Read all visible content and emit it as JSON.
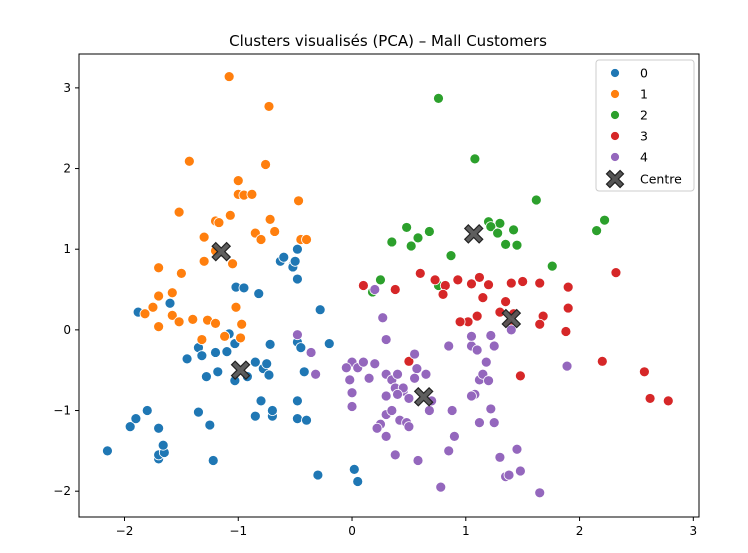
{
  "chart_data": {
    "type": "scatter",
    "title": "Clusters visualisés (PCA) – Mall Customers",
    "xlabel": "",
    "ylabel": "",
    "xlim": [
      -2.4,
      3.05
    ],
    "ylim": [
      -2.32,
      3.42
    ],
    "xticks": [
      -2,
      -1,
      0,
      1,
      2,
      3
    ],
    "yticks": [
      -2,
      -1,
      0,
      1,
      2,
      3
    ],
    "xtick_labels": [
      "−2",
      "−1",
      "0",
      "1",
      "2",
      "3"
    ],
    "ytick_labels": [
      "−2",
      "−1",
      "0",
      "1",
      "2",
      "3"
    ],
    "grid": false,
    "legend_position": "top-right",
    "series": [
      {
        "name": "0",
        "color": "#1f77b4",
        "points": [
          [
            -2.15,
            -1.5
          ],
          [
            -1.95,
            -1.2
          ],
          [
            -1.9,
            -1.1
          ],
          [
            -1.8,
            -1.0
          ],
          [
            -1.88,
            0.22
          ],
          [
            -1.7,
            -1.6
          ],
          [
            -1.7,
            -1.55
          ],
          [
            -1.65,
            -1.52
          ],
          [
            -1.66,
            -1.43
          ],
          [
            -1.7,
            -1.22
          ],
          [
            -1.6,
            0.33
          ],
          [
            -1.45,
            -0.36
          ],
          [
            -1.35,
            -1.02
          ],
          [
            -1.35,
            -0.22
          ],
          [
            -1.32,
            -0.32
          ],
          [
            -1.28,
            -0.58
          ],
          [
            -1.25,
            -1.18
          ],
          [
            -1.22,
            -1.62
          ],
          [
            -1.18,
            -0.52
          ],
          [
            -1.2,
            -0.28
          ],
          [
            -1.1,
            -0.27
          ],
          [
            -1.08,
            -0.05
          ],
          [
            -1.03,
            -0.63
          ],
          [
            -1.03,
            -0.17
          ],
          [
            -1.02,
            0.53
          ],
          [
            -0.95,
            0.52
          ],
          [
            -0.92,
            -0.58
          ],
          [
            -0.85,
            -0.4
          ],
          [
            -0.85,
            -1.07
          ],
          [
            -0.82,
            0.45
          ],
          [
            -0.8,
            -0.88
          ],
          [
            -0.78,
            -0.48
          ],
          [
            -0.75,
            -0.42
          ],
          [
            -0.73,
            -0.56
          ],
          [
            -0.72,
            -0.18
          ],
          [
            -0.7,
            -1.07
          ],
          [
            -0.7,
            -1.0
          ],
          [
            -0.63,
            0.85
          ],
          [
            -0.6,
            0.9
          ],
          [
            -0.52,
            0.8
          ],
          [
            -0.52,
            0.78
          ],
          [
            -0.5,
            0.85
          ],
          [
            -0.48,
            1.0
          ],
          [
            -0.48,
            0.63
          ],
          [
            -0.48,
            -0.15
          ],
          [
            -0.48,
            -0.88
          ],
          [
            -0.48,
            -1.1
          ],
          [
            -0.45,
            -0.22
          ],
          [
            -0.42,
            -0.52
          ],
          [
            -0.4,
            -1.12
          ],
          [
            -0.3,
            -1.8
          ],
          [
            -0.28,
            0.25
          ],
          [
            -0.2,
            -0.17
          ],
          [
            0.02,
            -1.73
          ],
          [
            0.05,
            -1.88
          ]
        ]
      },
      {
        "name": "1",
        "color": "#ff7f0e",
        "points": [
          [
            -1.08,
            3.14
          ],
          [
            -0.73,
            2.77
          ],
          [
            -1.43,
            2.09
          ],
          [
            -0.76,
            2.05
          ],
          [
            -1.0,
            1.85
          ],
          [
            -1.52,
            1.46
          ],
          [
            -1.0,
            1.68
          ],
          [
            -0.95,
            1.67
          ],
          [
            -0.88,
            1.68
          ],
          [
            -1.2,
            1.35
          ],
          [
            -1.17,
            1.33
          ],
          [
            -1.07,
            1.42
          ],
          [
            -0.72,
            1.37
          ],
          [
            -0.68,
            1.22
          ],
          [
            -0.85,
            1.2
          ],
          [
            -0.8,
            1.12
          ],
          [
            -0.47,
            1.6
          ],
          [
            -0.45,
            1.12
          ],
          [
            -0.4,
            1.12
          ],
          [
            -1.3,
            1.15
          ],
          [
            -1.2,
            0.98
          ],
          [
            -1.3,
            0.85
          ],
          [
            -1.05,
            0.82
          ],
          [
            -1.5,
            0.7
          ],
          [
            -1.7,
            0.77
          ],
          [
            -1.7,
            0.42
          ],
          [
            -1.58,
            0.46
          ],
          [
            -1.75,
            0.28
          ],
          [
            -1.82,
            0.2
          ],
          [
            -1.58,
            0.18
          ],
          [
            -1.52,
            0.1
          ],
          [
            -1.4,
            0.13
          ],
          [
            -1.27,
            0.12
          ],
          [
            -1.2,
            0.08
          ],
          [
            -0.97,
            0.07
          ],
          [
            -1.02,
            0.28
          ],
          [
            -1.32,
            -0.12
          ],
          [
            -1.12,
            -0.08
          ],
          [
            -0.98,
            -0.1
          ],
          [
            -1.7,
            0.04
          ]
        ]
      },
      {
        "name": "2",
        "color": "#2ca02c",
        "points": [
          [
            0.76,
            2.87
          ],
          [
            1.08,
            2.12
          ],
          [
            1.62,
            1.61
          ],
          [
            2.22,
            1.36
          ],
          [
            2.15,
            1.23
          ],
          [
            1.2,
            1.34
          ],
          [
            1.3,
            1.32
          ],
          [
            1.42,
            1.24
          ],
          [
            1.22,
            1.28
          ],
          [
            1.45,
            1.05
          ],
          [
            1.35,
            1.06
          ],
          [
            1.28,
            1.2
          ],
          [
            0.48,
            1.27
          ],
          [
            0.58,
            1.14
          ],
          [
            0.68,
            1.22
          ],
          [
            0.52,
            1.04
          ],
          [
            0.35,
            1.09
          ],
          [
            0.87,
            0.92
          ],
          [
            1.76,
            0.79
          ],
          [
            0.25,
            0.62
          ],
          [
            0.18,
            0.47
          ],
          [
            0.76,
            0.55
          ]
        ]
      },
      {
        "name": "3",
        "color": "#d62728",
        "points": [
          [
            0.1,
            0.55
          ],
          [
            0.38,
            0.5
          ],
          [
            0.6,
            0.7
          ],
          [
            0.73,
            0.62
          ],
          [
            0.82,
            0.55
          ],
          [
            0.8,
            0.44
          ],
          [
            0.93,
            0.62
          ],
          [
            1.12,
            0.65
          ],
          [
            1.05,
            0.57
          ],
          [
            1.2,
            0.56
          ],
          [
            1.15,
            0.4
          ],
          [
            1.35,
            0.35
          ],
          [
            1.4,
            0.58
          ],
          [
            1.5,
            0.6
          ],
          [
            1.65,
            0.58
          ],
          [
            1.9,
            0.53
          ],
          [
            2.32,
            0.71
          ],
          [
            1.68,
            0.17
          ],
          [
            1.65,
            0.07
          ],
          [
            1.9,
            0.27
          ],
          [
            1.3,
            0.22
          ],
          [
            1.42,
            0.2
          ],
          [
            1.1,
            0.17
          ],
          [
            1.02,
            0.1
          ],
          [
            0.95,
            0.1
          ],
          [
            1.38,
            0.08
          ],
          [
            0.5,
            -0.39
          ],
          [
            1.88,
            -0.02
          ],
          [
            1.48,
            -0.57
          ],
          [
            2.2,
            -0.39
          ],
          [
            2.57,
            -0.52
          ],
          [
            2.62,
            -0.85
          ],
          [
            2.78,
            -0.88
          ]
        ]
      },
      {
        "name": "4",
        "color": "#9467bd",
        "points": [
          [
            0.2,
            0.5
          ],
          [
            0.27,
            0.15
          ],
          [
            0.3,
            -0.12
          ],
          [
            0.2,
            -0.42
          ],
          [
            0.3,
            -0.55
          ],
          [
            0.35,
            -0.62
          ],
          [
            0.4,
            -0.55
          ],
          [
            0.3,
            -0.82
          ],
          [
            0.38,
            -0.72
          ],
          [
            0.45,
            -0.76
          ],
          [
            0.45,
            -0.72
          ],
          [
            0.5,
            -0.85
          ],
          [
            0.55,
            -0.3
          ],
          [
            0.57,
            -0.48
          ],
          [
            0.55,
            -0.6
          ],
          [
            0.65,
            -0.55
          ],
          [
            0.7,
            -0.88
          ],
          [
            0.68,
            -1.0
          ],
          [
            0.3,
            -1.05
          ],
          [
            0.35,
            -1.0
          ],
          [
            0.42,
            -1.12
          ],
          [
            0.48,
            -1.15
          ],
          [
            0.5,
            -1.2
          ],
          [
            0.25,
            -1.17
          ],
          [
            0.22,
            -1.22
          ],
          [
            0.3,
            -1.32
          ],
          [
            0.38,
            -1.55
          ],
          [
            0.58,
            -1.62
          ],
          [
            0.78,
            -1.95
          ],
          [
            0.88,
            -1.0
          ],
          [
            0.9,
            -1.32
          ],
          [
            0.85,
            -1.5
          ],
          [
            0.85,
            -0.2
          ],
          [
            1.05,
            -0.2
          ],
          [
            1.08,
            -0.8
          ],
          [
            1.12,
            -0.62
          ],
          [
            1.15,
            -0.55
          ],
          [
            1.18,
            -0.4
          ],
          [
            1.2,
            -0.63
          ],
          [
            1.12,
            -1.15
          ],
          [
            1.22,
            -0.98
          ],
          [
            1.25,
            -1.15
          ],
          [
            1.3,
            -1.58
          ],
          [
            1.35,
            -1.82
          ],
          [
            1.45,
            -1.48
          ],
          [
            1.48,
            -1.75
          ],
          [
            1.65,
            -2.02
          ],
          [
            1.4,
            0.0
          ],
          [
            1.05,
            -0.08
          ],
          [
            1.1,
            -0.25
          ],
          [
            1.25,
            -0.2
          ],
          [
            0.0,
            -0.4
          ],
          [
            0.05,
            -0.47
          ],
          [
            -0.05,
            -0.47
          ],
          [
            -0.02,
            -0.62
          ],
          [
            0.1,
            -0.4
          ],
          [
            0.15,
            -0.6
          ],
          [
            0.0,
            -0.78
          ],
          [
            0.0,
            -0.95
          ],
          [
            0.4,
            -0.8
          ],
          [
            1.05,
            -0.82
          ],
          [
            -0.32,
            -0.55
          ],
          [
            -0.36,
            -0.28
          ],
          [
            -0.48,
            -0.06
          ],
          [
            1.89,
            -0.45
          ],
          [
            1.38,
            -1.8
          ],
          [
            1.22,
            -0.07
          ]
        ]
      }
    ],
    "centres": {
      "name": "Centre",
      "color": "#555555",
      "points": [
        [
          -1.15,
          0.97
        ],
        [
          -0.98,
          -0.5
        ],
        [
          1.07,
          1.19
        ],
        [
          1.4,
          0.14
        ],
        [
          0.63,
          -0.83
        ]
      ]
    }
  }
}
